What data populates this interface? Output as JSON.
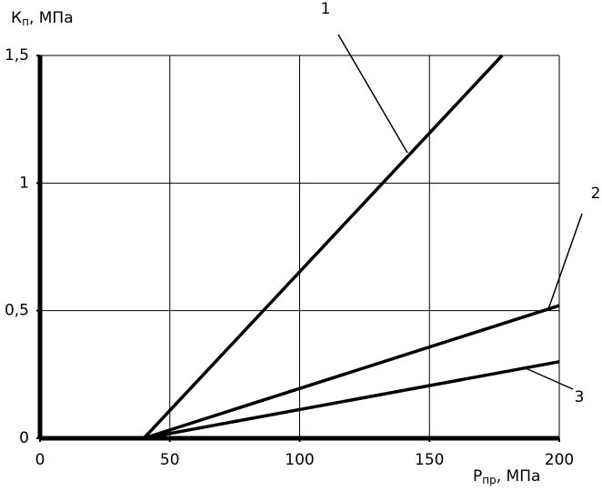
{
  "chart_data": {
    "type": "line",
    "ylabel": [
      "К",
      "п",
      ", МПа"
    ],
    "xlabel": [
      "Р",
      "пр",
      ", МПа"
    ],
    "xlim": [
      0,
      200
    ],
    "ylim": [
      0,
      1.5
    ],
    "xticks": [
      0,
      50,
      100,
      150,
      200
    ],
    "yticks": [
      0,
      {
        "value": 0.5,
        "label": "0,5"
      },
      1,
      {
        "value": 1.5,
        "label": "1,5"
      }
    ],
    "grid": true,
    "series": [
      {
        "name": "1",
        "color": "#000000",
        "x": [
          0,
          40,
          178
        ],
        "values": [
          0,
          0,
          1.5
        ]
      },
      {
        "name": "2",
        "color": "#000000",
        "x": [
          0,
          40,
          200
        ],
        "values": [
          0,
          0,
          0.52
        ]
      },
      {
        "name": "3",
        "color": "#000000",
        "x": [
          0,
          40,
          200
        ],
        "values": [
          0,
          0,
          0.3
        ]
      }
    ]
  }
}
